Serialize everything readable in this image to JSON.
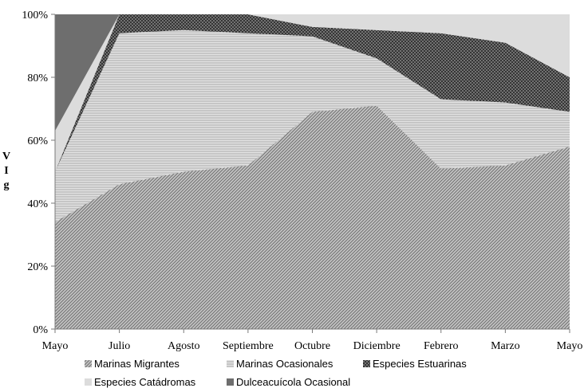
{
  "chart_data": {
    "type": "area",
    "stacked": true,
    "categories": [
      "Mayo",
      "Julio",
      "Agosto",
      "Septiembre",
      "Octubre",
      "Diciembre",
      "Febrero",
      "Marzo",
      "Mayo"
    ],
    "ylabel": [
      "V",
      "I",
      "g"
    ],
    "ylim": [
      0,
      100
    ],
    "yticks": [
      "0%",
      "20%",
      "40%",
      "60%",
      "80%",
      "100%"
    ],
    "grid": false,
    "legend_position": "bottom",
    "series": [
      {
        "name": "Marinas Migrantes",
        "values": [
          34,
          46,
          50,
          52,
          69,
          71,
          51,
          52,
          58
        ],
        "color": "#a8a8a8",
        "pattern": "diag"
      },
      {
        "name": "Marinas Ocasionales",
        "values": [
          16,
          48,
          45,
          42,
          24,
          15,
          22,
          20,
          11
        ],
        "color": "#d2d2d2",
        "pattern": "horiz"
      },
      {
        "name": "Especies Estuarinas",
        "values": [
          0,
          6,
          5,
          6,
          3,
          9,
          21,
          19,
          11
        ],
        "color": "#555555",
        "pattern": "cross"
      },
      {
        "name": "Especies Catádromas",
        "values": [
          13,
          0,
          0,
          0,
          4,
          5,
          6,
          9,
          20
        ],
        "color": "#dcdcdc",
        "pattern": "solid"
      },
      {
        "name": "Dulceacuícola Ocasional",
        "values": [
          37,
          0,
          0,
          0,
          0,
          0,
          0,
          0,
          0
        ],
        "color": "#6e6e6e",
        "pattern": "solid"
      }
    ]
  }
}
